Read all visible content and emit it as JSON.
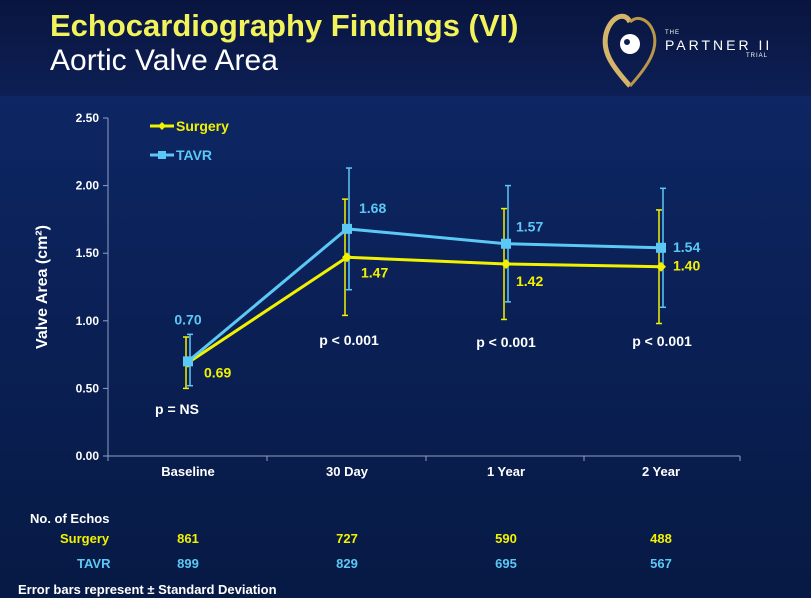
{
  "header": {
    "title": "Echocardiography Findings (VI)",
    "subtitle": "Aortic Valve Area"
  },
  "logo": {
    "line1": "THE",
    "line2": "PARTNER II",
    "line3": "TRIAL"
  },
  "colors": {
    "surgery": "#f2f200",
    "tavr": "#5cc8f5",
    "text": "#ffffff"
  },
  "chart_data": {
    "type": "line",
    "ylabel": "Valve Area (cm²)",
    "ylim": [
      0,
      2.5
    ],
    "yticks": [
      "0.00",
      "0.50",
      "1.00",
      "1.50",
      "2.00",
      "2.50"
    ],
    "categories": [
      "Baseline",
      "30 Day",
      "1 Year",
      "2 Year"
    ],
    "legend_position": "top-left",
    "series": [
      {
        "name": "Surgery",
        "values": [
          0.69,
          1.47,
          1.42,
          1.4
        ],
        "labels": [
          "0.69",
          "1.47",
          "1.42",
          "1.40"
        ],
        "error_low": [
          0.5,
          1.04,
          1.01,
          0.98
        ],
        "error_high": [
          0.88,
          1.9,
          1.83,
          1.82
        ]
      },
      {
        "name": "TAVR",
        "values": [
          0.7,
          1.68,
          1.57,
          1.54
        ],
        "labels": [
          "0.70",
          "1.68",
          "1.57",
          "1.54"
        ],
        "error_low": [
          0.52,
          1.23,
          1.14,
          1.1
        ],
        "error_high": [
          0.9,
          2.13,
          2.0,
          1.98
        ]
      }
    ],
    "pvalues": [
      "p = NS",
      "p < 0.001",
      "p < 0.001",
      "p < 0.001"
    ]
  },
  "echo_table": {
    "title": "No. of Echos",
    "rows": [
      {
        "label": "Surgery",
        "values": [
          "861",
          "727",
          "590",
          "488"
        ]
      },
      {
        "label": "TAVR",
        "values": [
          "899",
          "829",
          "695",
          "567"
        ]
      }
    ]
  },
  "footnote": "Error bars represent ± Standard Deviation"
}
